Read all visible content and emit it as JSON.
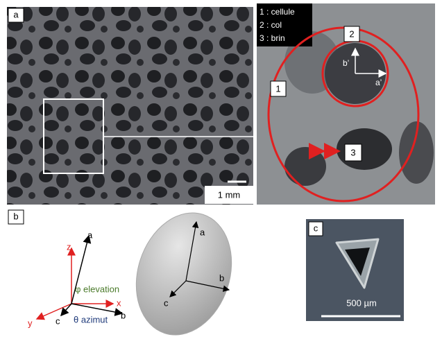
{
  "panel_a": {
    "label": "a",
    "legend": [
      "1 : cellule",
      "2 : col",
      "3 : brin"
    ],
    "markers": [
      "1",
      "2",
      "3"
    ],
    "axes": [
      "b’",
      "a’"
    ],
    "scale_bar": "1 mm"
  },
  "panel_b": {
    "label": "b",
    "frame_axes": [
      "z",
      "x",
      "y"
    ],
    "cell_axes": [
      "a",
      "b",
      "c"
    ],
    "angles": [
      "φ elevation",
      "θ azimut"
    ],
    "ellipsoid_axes": [
      "a",
      "b",
      "c"
    ]
  },
  "panel_c": {
    "label": "c",
    "scale_bar": "500 µm"
  }
}
